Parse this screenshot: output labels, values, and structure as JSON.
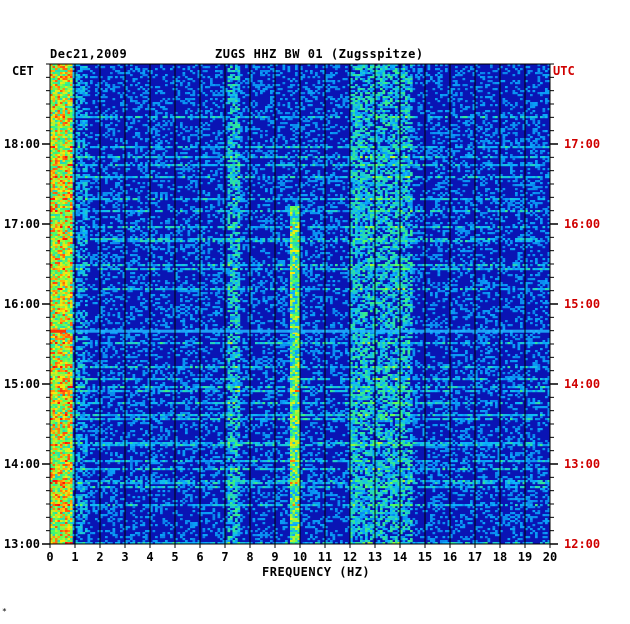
{
  "header": {
    "date": "Dec21,2009",
    "station": "ZUGS HHZ BW 01 (Zugsspitze)"
  },
  "left_axis_label": "CET",
  "right_axis_label": "UTC",
  "footer_mark": "*",
  "colors": {
    "background": "#ffffff",
    "spectrogram_base": "#0a14b4",
    "utc_label": "#d00000",
    "grid": "#000000"
  },
  "chart_data": {
    "type": "heatmap",
    "xlabel": "FREQUENCY (HZ)",
    "xlim": [
      0,
      20
    ],
    "x_ticks": [
      "0",
      "1",
      "2",
      "3",
      "4",
      "5",
      "6",
      "7",
      "8",
      "9",
      "10",
      "11",
      "12",
      "13",
      "14",
      "15",
      "16",
      "17",
      "18",
      "19",
      "20"
    ],
    "left_ticks": [
      "18:00",
      "17:00",
      "16:00",
      "15:00",
      "14:00",
      "13:00"
    ],
    "right_ticks": [
      "17:00",
      "16:00",
      "15:00",
      "14:00",
      "13:00",
      "12:00"
    ],
    "y_time_range_cet": [
      "13:00",
      "19:00"
    ],
    "features": [
      {
        "description": "strong low-frequency energy",
        "freq_hz": [
          0.1,
          0.8
        ],
        "time_cet": [
          "13:00",
          "19:00"
        ]
      },
      {
        "description": "persistent line",
        "freq_hz": [
          9.6,
          9.9
        ],
        "time_cet": [
          "13:00",
          "17:10"
        ]
      },
      {
        "description": "banded energy",
        "freq_hz": [
          12.0,
          14.5
        ],
        "time_cet": [
          "13:00",
          "19:00"
        ]
      },
      {
        "description": "strong horizontal band",
        "freq_hz": [
          0,
          20
        ],
        "time_cet": [
          "15:40",
          "15:42"
        ]
      }
    ]
  }
}
